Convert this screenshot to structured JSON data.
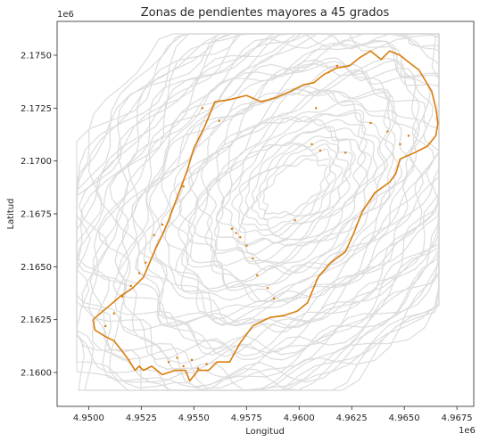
{
  "chart_data": {
    "type": "scatter",
    "title": "Zonas de pendientes mayores a 45 grados",
    "xlabel": "Longitud",
    "ylabel": "Latitud",
    "x_offset_label": "1e6",
    "y_offset_label": "1e6",
    "xlim": [
      4.9485,
      4.9683
    ],
    "ylim": [
      2.1584,
      2.1766
    ],
    "xticks": [
      4.95,
      4.9525,
      4.955,
      4.9575,
      4.96,
      4.9625,
      4.965,
      4.9675
    ],
    "xtick_labels": [
      "4.9500",
      "4.9525",
      "4.9550",
      "4.9575",
      "4.9600",
      "4.9625",
      "4.9650",
      "4.9675"
    ],
    "yticks": [
      2.16,
      2.1625,
      2.165,
      2.1675,
      2.17,
      2.1725,
      2.175
    ],
    "ytick_labels": [
      "2.1600",
      "2.1625",
      "2.1650",
      "2.1675",
      "2.1700",
      "2.1725",
      "2.1750"
    ],
    "grid": false,
    "colors": {
      "boundary": "#d97c0a",
      "contours": "#dcdcdc",
      "axes": "#262626"
    },
    "boundary": {
      "x": [
        4.9502,
        4.9508,
        4.9515,
        4.9521,
        4.9526,
        4.9529,
        4.9532,
        4.9535,
        4.9538,
        4.9541,
        4.9544,
        4.9547,
        4.955,
        4.9555,
        4.956,
        4.9567,
        4.9575,
        4.9582,
        4.9589,
        4.9596,
        4.9602,
        4.9607,
        4.9612,
        4.9618,
        4.9624,
        4.9629,
        4.9634,
        4.9639,
        4.9643,
        4.9648,
        4.9653,
        4.9657,
        4.966,
        4.9663,
        4.9665,
        4.9666,
        4.9665,
        4.9661,
        4.9655,
        4.9648,
        4.9646,
        4.9643,
        4.9636,
        4.963,
        4.9626,
        4.9622,
        4.9615,
        4.9609,
        4.9604,
        4.9599,
        4.9593,
        4.9586,
        4.9578,
        4.9572,
        4.9567,
        4.9561,
        4.9557,
        4.9552,
        4.9548,
        4.9546,
        4.9541,
        4.9535,
        4.953,
        4.9526,
        4.9524,
        4.9522,
        4.9519,
        4.9516,
        4.9512,
        4.9508,
        4.9503,
        4.9502
      ],
      "y": [
        2.1625,
        2.163,
        2.1636,
        2.164,
        2.1645,
        2.1652,
        2.1659,
        2.1665,
        2.1672,
        2.168,
        2.1688,
        2.1696,
        2.1706,
        2.1716,
        2.1728,
        2.1729,
        2.1731,
        2.1728,
        2.173,
        2.1733,
        2.1736,
        2.1737,
        2.1741,
        2.1744,
        2.1745,
        2.1749,
        2.1752,
        2.1748,
        2.1752,
        2.175,
        2.1746,
        2.1743,
        2.1738,
        2.1733,
        2.1725,
        2.1718,
        2.1712,
        2.1707,
        2.1704,
        2.1701,
        2.1694,
        2.169,
        2.1685,
        2.1676,
        2.1666,
        2.1657,
        2.1652,
        2.1645,
        2.1633,
        2.1629,
        2.1627,
        2.1626,
        2.1622,
        2.1614,
        2.1605,
        2.1605,
        2.1601,
        2.1601,
        2.1596,
        2.1601,
        2.1601,
        2.1599,
        2.1603,
        2.1601,
        2.1603,
        2.1601,
        2.1606,
        2.161,
        2.1615,
        2.1617,
        2.162,
        2.1625
      ]
    },
    "steep_patches": {
      "x": [
        4.9508,
        4.9512,
        4.9516,
        4.952,
        4.9524,
        4.9527,
        4.9531,
        4.9535,
        4.9538,
        4.9542,
        4.9545,
        4.9549,
        4.9552,
        4.9556,
        4.9568,
        4.957,
        4.9572,
        4.9575,
        4.9578,
        4.958,
        4.9585,
        4.9588,
        4.9606,
        4.961,
        4.9622,
        4.9634,
        4.9642,
        4.9648,
        4.9652,
        4.9614,
        4.9618,
        4.9554,
        4.9562,
        4.9545,
        4.9598,
        4.9608
      ],
      "y": [
        2.1622,
        2.1628,
        2.1636,
        2.1641,
        2.1647,
        2.1652,
        2.1665,
        2.167,
        2.1605,
        2.1607,
        2.1603,
        2.1606,
        2.1602,
        2.1604,
        2.1668,
        2.1666,
        2.1664,
        2.166,
        2.1654,
        2.1646,
        2.164,
        2.1635,
        2.1708,
        2.1705,
        2.1704,
        2.1718,
        2.1714,
        2.1708,
        2.1712,
        2.1742,
        2.1745,
        2.1725,
        2.1719,
        2.1688,
        2.1672,
        2.1725
      ]
    }
  }
}
